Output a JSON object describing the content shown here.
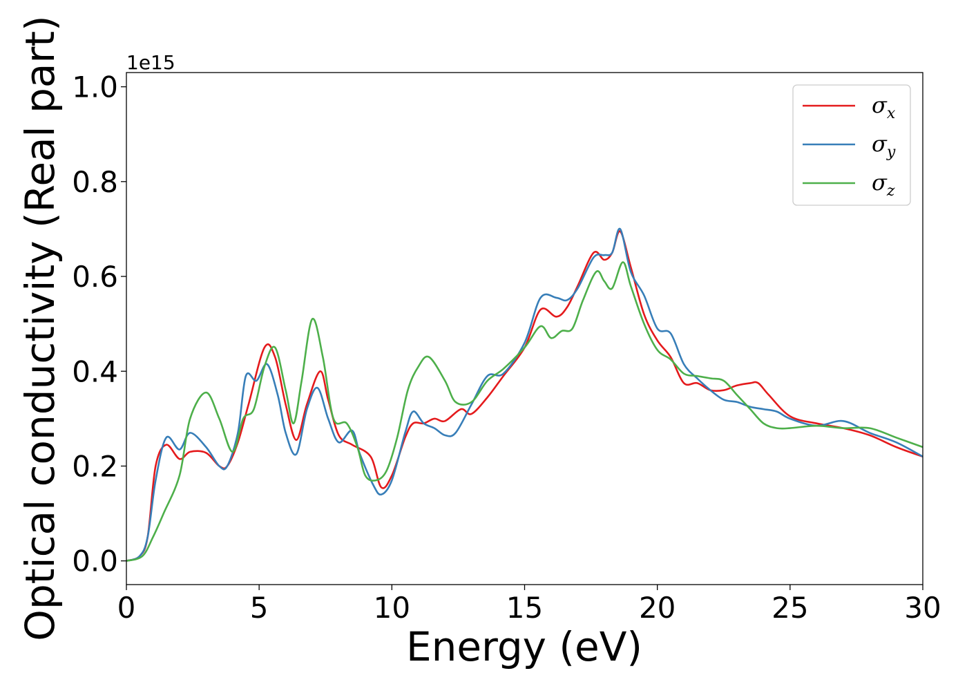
{
  "chart_data": {
    "type": "line",
    "title": "",
    "xlabel": "Energy (eV)",
    "ylabel": "Optical conductivity (Real part)",
    "y_offset_label": "1e15",
    "y_scale": 1000000000000000.0,
    "xlim": [
      0,
      30
    ],
    "ylim": [
      -0.05,
      1.03
    ],
    "x_ticks": [
      0,
      5,
      10,
      15,
      20,
      25,
      30
    ],
    "x_tick_labels": [
      "0",
      "5",
      "10",
      "15",
      "20",
      "25",
      "30"
    ],
    "y_ticks": [
      0.0,
      0.2,
      0.4,
      0.6,
      0.8,
      1.0
    ],
    "y_tick_labels": [
      "0.0",
      "0.2",
      "0.4",
      "0.6",
      "0.8",
      "1.0"
    ],
    "grid": false,
    "legend_position": "top-right",
    "series": [
      {
        "name": "σx",
        "label_symbol": "σ",
        "label_sub": "x",
        "color": "#e41a1c",
        "x": [
          0,
          0.5,
          0.8,
          1.1,
          1.5,
          2.0,
          2.4,
          3.0,
          3.5,
          3.8,
          4.2,
          4.6,
          5.2,
          5.6,
          6.0,
          6.4,
          6.8,
          7.3,
          7.6,
          8.0,
          8.5,
          9.2,
          9.6,
          10.0,
          10.5,
          10.8,
          11.2,
          11.6,
          12.0,
          12.6,
          13.0,
          13.6,
          14.2,
          15.0,
          15.6,
          16.2,
          16.6,
          17.0,
          17.6,
          18.0,
          18.3,
          18.6,
          19.0,
          19.5,
          20.0,
          20.5,
          21.0,
          21.5,
          22.0,
          22.5,
          23.0,
          23.5,
          23.8,
          24.2,
          25.0,
          26.0,
          27.0,
          28.0,
          29.0,
          30.0
        ],
        "y": [
          0.0,
          0.01,
          0.05,
          0.2,
          0.245,
          0.215,
          0.23,
          0.228,
          0.2,
          0.2,
          0.25,
          0.33,
          0.45,
          0.43,
          0.33,
          0.255,
          0.33,
          0.4,
          0.34,
          0.265,
          0.245,
          0.22,
          0.155,
          0.18,
          0.26,
          0.29,
          0.29,
          0.3,
          0.295,
          0.32,
          0.31,
          0.345,
          0.39,
          0.45,
          0.53,
          0.515,
          0.535,
          0.58,
          0.65,
          0.635,
          0.65,
          0.695,
          0.62,
          0.52,
          0.465,
          0.43,
          0.375,
          0.375,
          0.36,
          0.36,
          0.37,
          0.375,
          0.375,
          0.35,
          0.305,
          0.29,
          0.28,
          0.265,
          0.24,
          0.22
        ]
      },
      {
        "name": "σy",
        "label_symbol": "σ",
        "label_sub": "y",
        "color": "#377eb8",
        "x": [
          0,
          0.5,
          0.8,
          1.1,
          1.5,
          2.0,
          2.4,
          3.0,
          3.5,
          3.8,
          4.2,
          4.5,
          4.9,
          5.3,
          5.7,
          6.0,
          6.4,
          6.8,
          7.2,
          7.6,
          8.0,
          8.5,
          8.8,
          9.3,
          9.6,
          10.0,
          10.5,
          10.8,
          11.2,
          11.6,
          12.0,
          12.4,
          13.0,
          13.6,
          14.2,
          15.0,
          15.6,
          16.2,
          16.6,
          17.0,
          17.6,
          18.0,
          18.3,
          18.6,
          19.0,
          19.5,
          20.0,
          20.5,
          21.0,
          21.5,
          22.0,
          22.5,
          23.0,
          23.5,
          24.0,
          24.5,
          25.0,
          26.0,
          27.0,
          28.0,
          29.0,
          30.0
        ],
        "y": [
          0.0,
          0.01,
          0.05,
          0.17,
          0.26,
          0.235,
          0.27,
          0.24,
          0.2,
          0.2,
          0.27,
          0.39,
          0.38,
          0.415,
          0.35,
          0.27,
          0.225,
          0.32,
          0.365,
          0.3,
          0.25,
          0.275,
          0.225,
          0.16,
          0.14,
          0.17,
          0.27,
          0.315,
          0.29,
          0.28,
          0.265,
          0.27,
          0.33,
          0.39,
          0.395,
          0.46,
          0.555,
          0.555,
          0.55,
          0.575,
          0.64,
          0.645,
          0.65,
          0.7,
          0.61,
          0.56,
          0.49,
          0.48,
          0.415,
          0.385,
          0.36,
          0.34,
          0.335,
          0.325,
          0.32,
          0.315,
          0.3,
          0.285,
          0.295,
          0.27,
          0.25,
          0.22
        ]
      },
      {
        "name": "σz",
        "label_symbol": "σ",
        "label_sub": "z",
        "color": "#4daf4a",
        "x": [
          0,
          0.6,
          1.0,
          1.4,
          2.0,
          2.4,
          3.0,
          3.5,
          4.0,
          4.4,
          4.8,
          5.2,
          5.6,
          6.0,
          6.3,
          6.6,
          7.0,
          7.4,
          7.8,
          8.3,
          8.7,
          9.0,
          9.4,
          9.8,
          10.2,
          10.6,
          11.0,
          11.4,
          12.0,
          12.4,
          13.0,
          13.6,
          14.2,
          15.0,
          15.6,
          16.0,
          16.4,
          16.8,
          17.2,
          17.7,
          18.0,
          18.3,
          18.7,
          19.0,
          19.5,
          20.0,
          20.5,
          21.0,
          21.5,
          22.0,
          22.5,
          23.0,
          23.5,
          24.0,
          24.5,
          25.0,
          26.0,
          27.0,
          28.0,
          29.0,
          30.0
        ],
        "y": [
          0.0,
          0.01,
          0.05,
          0.1,
          0.18,
          0.3,
          0.355,
          0.3,
          0.23,
          0.3,
          0.32,
          0.41,
          0.45,
          0.36,
          0.29,
          0.38,
          0.51,
          0.43,
          0.3,
          0.29,
          0.24,
          0.18,
          0.17,
          0.19,
          0.26,
          0.36,
          0.41,
          0.43,
          0.38,
          0.335,
          0.335,
          0.38,
          0.405,
          0.45,
          0.495,
          0.47,
          0.485,
          0.49,
          0.55,
          0.61,
          0.59,
          0.575,
          0.63,
          0.58,
          0.5,
          0.445,
          0.425,
          0.395,
          0.39,
          0.385,
          0.38,
          0.35,
          0.32,
          0.29,
          0.28,
          0.28,
          0.285,
          0.28,
          0.28,
          0.26,
          0.24
        ]
      }
    ]
  }
}
